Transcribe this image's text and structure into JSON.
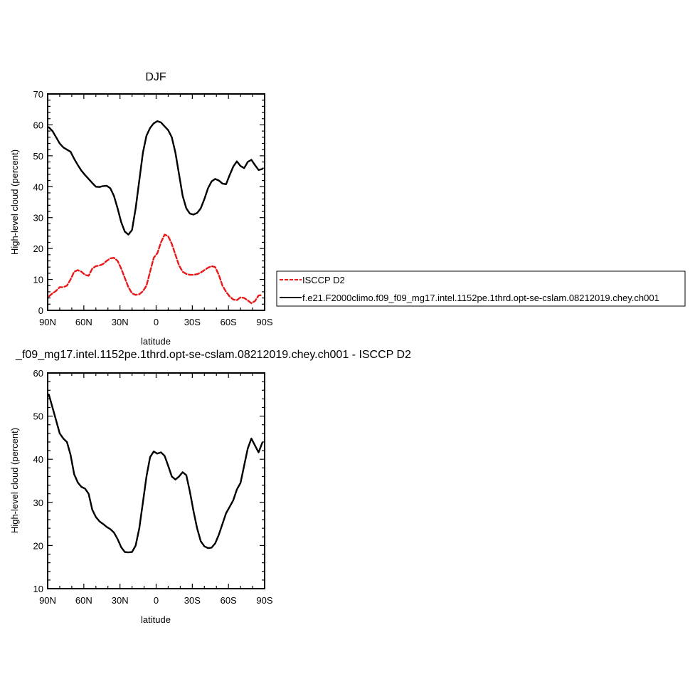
{
  "chart_data": [
    {
      "type": "line",
      "title": "DJF",
      "xlabel": "latitude",
      "ylabel": "High-level cloud (percent)",
      "xlim": [
        -90,
        90
      ],
      "ylim": [
        0,
        70
      ],
      "x_axis_note": "positive = N, negative = S",
      "yticks": [
        0,
        10,
        20,
        30,
        40,
        50,
        60,
        70
      ],
      "xticks": [
        {
          "value": 90,
          "label": "90N"
        },
        {
          "value": 60,
          "label": "60N"
        },
        {
          "value": 30,
          "label": "30N"
        },
        {
          "value": 0,
          "label": "0"
        },
        {
          "value": -30,
          "label": "30S"
        },
        {
          "value": -60,
          "label": "60S"
        },
        {
          "value": -90,
          "label": "90S"
        }
      ],
      "legend_position": "right",
      "series": [
        {
          "name": "ISCCP D2",
          "color": "#e8191b",
          "dash": "dashed",
          "x": [
            89,
            86,
            83,
            80,
            77,
            74,
            71,
            68,
            65,
            62,
            59,
            56,
            53,
            50,
            47,
            44,
            41,
            38,
            35,
            32,
            29,
            26,
            23,
            20,
            17,
            14,
            11,
            8,
            5,
            2,
            -1,
            -4,
            -7,
            -10,
            -13,
            -16,
            -19,
            -22,
            -25,
            -28,
            -31,
            -34,
            -37,
            -40,
            -43,
            -46,
            -49,
            -52,
            -55,
            -58,
            -61,
            -64,
            -67,
            -70,
            -73,
            -76,
            -79,
            -82,
            -85,
            -88
          ],
          "y": [
            4.5,
            5.5,
            6.3,
            7.5,
            7.5,
            8.0,
            10.0,
            12.5,
            13.0,
            12.5,
            11.5,
            11.2,
            13.5,
            14.3,
            14.5,
            15.0,
            16.0,
            16.8,
            17.0,
            16.0,
            13.5,
            10.5,
            7.5,
            5.5,
            5.0,
            5.2,
            6.2,
            8.0,
            12.5,
            17.0,
            18.5,
            22.0,
            24.5,
            24.0,
            21.5,
            18.0,
            14.5,
            12.5,
            11.8,
            11.5,
            11.5,
            11.7,
            12.2,
            13.0,
            13.8,
            14.3,
            14.0,
            11.5,
            8.0,
            6.0,
            4.5,
            3.5,
            3.3,
            4.2,
            4.0,
            3.2,
            2.3,
            3.0,
            4.8,
            5.0
          ]
        },
        {
          "name": "f.e21.F2000climo.f09_f09_mg17.intel.1152pe.1thrd.opt-se-cslam.08212019.chey.ch001",
          "color": "#000000",
          "dash": "solid",
          "x": [
            89,
            86,
            83,
            80,
            77,
            74,
            71,
            68,
            65,
            62,
            59,
            56,
            53,
            50,
            47,
            44,
            41,
            38,
            35,
            32,
            29,
            26,
            23,
            20,
            17,
            14,
            11,
            8,
            5,
            2,
            -1,
            -4,
            -7,
            -10,
            -13,
            -16,
            -19,
            -22,
            -25,
            -28,
            -31,
            -34,
            -37,
            -40,
            -43,
            -46,
            -49,
            -52,
            -55,
            -58,
            -61,
            -64,
            -67,
            -70,
            -73,
            -76,
            -79,
            -82,
            -85,
            -88
          ],
          "y": [
            59.2,
            58.0,
            56.0,
            54.0,
            52.7,
            52.0,
            51.3,
            49.0,
            47.0,
            45.2,
            43.8,
            42.5,
            41.2,
            40.0,
            39.9,
            40.2,
            40.3,
            39.5,
            37.0,
            33.0,
            28.5,
            25.5,
            24.5,
            26.0,
            33.0,
            42.0,
            51.0,
            56.5,
            59.0,
            60.5,
            61.2,
            60.8,
            59.5,
            58.3,
            56.0,
            51.0,
            44.0,
            37.0,
            33.0,
            31.3,
            31.0,
            31.5,
            33.0,
            36.0,
            39.5,
            41.7,
            42.5,
            42.0,
            41.0,
            40.8,
            43.8,
            46.5,
            48.2,
            46.7,
            46.0,
            48.0,
            48.7,
            47.0,
            45.4,
            45.7
          ]
        }
      ]
    },
    {
      "type": "line",
      "title": "_f09_mg17.intel.1152pe.1thrd.opt-se-cslam.08212019.chey.ch001 - ISCCP D2",
      "xlabel": "latitude",
      "ylabel": "High-level cloud (percent)",
      "xlim": [
        -90,
        90
      ],
      "ylim": [
        10,
        60
      ],
      "yticks": [
        10,
        20,
        30,
        40,
        50,
        60
      ],
      "xticks": [
        {
          "value": 90,
          "label": "90N"
        },
        {
          "value": 60,
          "label": "60N"
        },
        {
          "value": 30,
          "label": "30N"
        },
        {
          "value": 0,
          "label": "0"
        },
        {
          "value": -30,
          "label": "30S"
        },
        {
          "value": -60,
          "label": "60S"
        },
        {
          "value": -90,
          "label": "90S"
        }
      ],
      "series": [
        {
          "name": "",
          "color": "#000000",
          "dash": "solid",
          "x": [
            89,
            86,
            83,
            80,
            77,
            74,
            71,
            68,
            65,
            62,
            59,
            56,
            53,
            50,
            47,
            44,
            41,
            38,
            35,
            32,
            29,
            26,
            23,
            20,
            17,
            14,
            11,
            8,
            5,
            2,
            -1,
            -4,
            -7,
            -10,
            -13,
            -16,
            -19,
            -22,
            -25,
            -28,
            -31,
            -34,
            -37,
            -40,
            -43,
            -46,
            -49,
            -52,
            -55,
            -58,
            -61,
            -64,
            -67,
            -70,
            -73,
            -76,
            -79,
            -82,
            -85,
            -88
          ],
          "y": [
            55.0,
            52.0,
            49.0,
            46.0,
            44.8,
            44.0,
            41.0,
            36.5,
            34.6,
            33.6,
            33.2,
            32.0,
            28.3,
            26.6,
            25.6,
            25.0,
            24.3,
            23.8,
            23.0,
            21.5,
            19.6,
            18.5,
            18.4,
            18.5,
            20.0,
            24.0,
            30.0,
            36.0,
            40.5,
            41.8,
            41.3,
            41.6,
            40.8,
            38.5,
            36.0,
            35.3,
            36.0,
            37.0,
            36.3,
            32.5,
            28.0,
            24.0,
            21.0,
            19.8,
            19.4,
            19.5,
            20.5,
            22.5,
            25.0,
            27.5,
            29.0,
            30.5,
            33.0,
            34.5,
            38.5,
            42.5,
            44.8,
            43.2,
            41.6,
            43.8
          ]
        }
      ]
    }
  ]
}
